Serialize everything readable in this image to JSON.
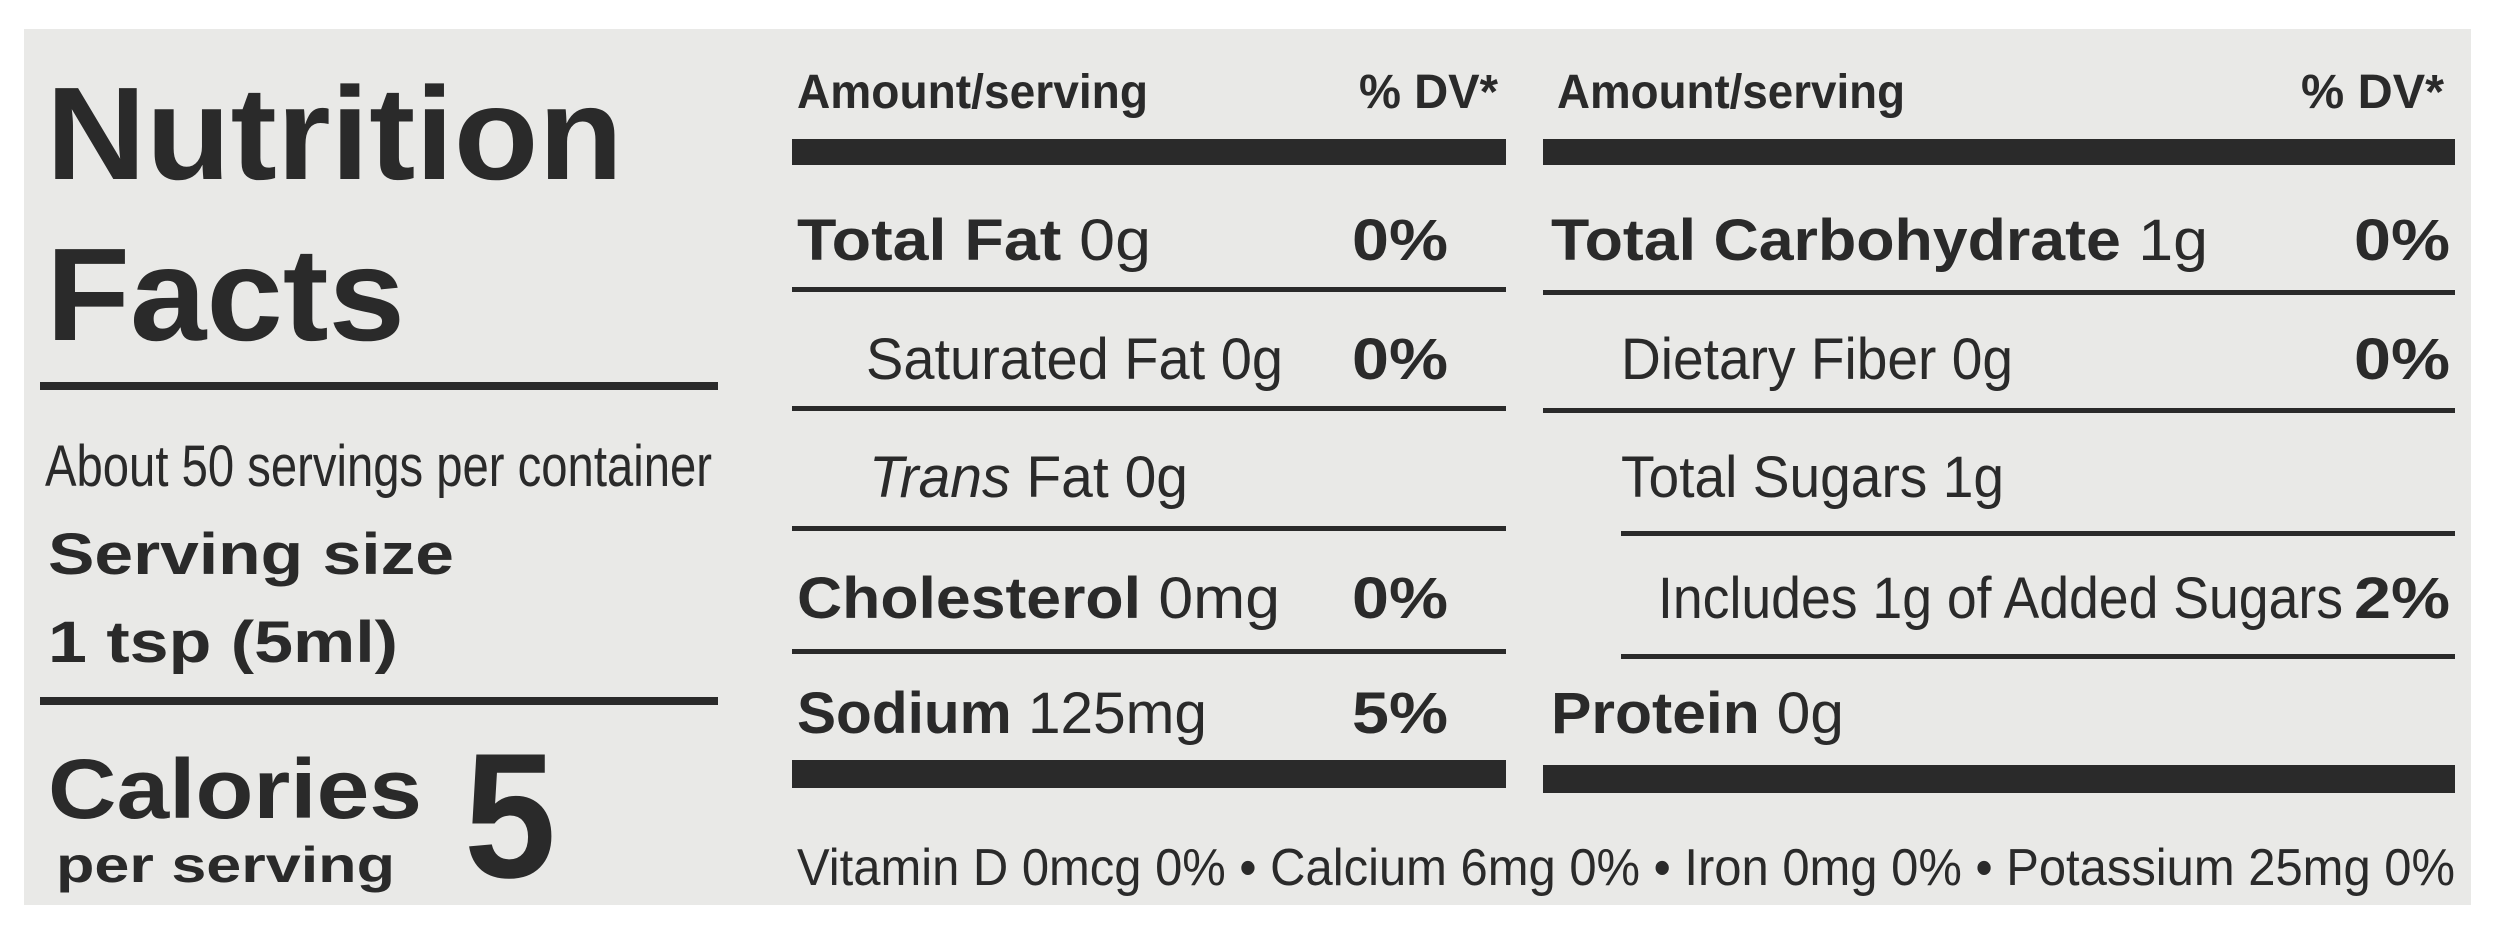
{
  "title": {
    "line1": "Nutrition",
    "line2": "Facts"
  },
  "servings_per_container": "About 50 servings per container",
  "serving_size": {
    "label": "Serving size",
    "value": "1 tsp (5ml)"
  },
  "calories": {
    "label": "Calories",
    "sublabel": "per serving",
    "value": 5
  },
  "columns": [
    {
      "header": {
        "amount": "Amount/serving",
        "dv": "% DV*"
      },
      "rows": [
        {
          "name": "Total Fat",
          "amount": "0g",
          "dv": "0%"
        },
        {
          "name": "Saturated Fat",
          "amount": "0g",
          "dv": "0%"
        },
        {
          "name_italic": "Trans",
          "name": "Fat",
          "amount": "0g"
        },
        {
          "name": "Cholesterol",
          "amount": "0mg",
          "dv": "0%"
        },
        {
          "name": "Sodium",
          "amount": "125mg",
          "dv": "5%"
        }
      ]
    },
    {
      "header": {
        "amount": "Amount/serving",
        "dv": "% DV*"
      },
      "rows": [
        {
          "name": "Total Carbohydrate",
          "amount": "1g",
          "dv": "0%"
        },
        {
          "name": "Dietary Fiber",
          "amount": "0g",
          "dv": "0%"
        },
        {
          "name": "Total Sugars",
          "amount": "1g"
        },
        {
          "name": "Includes 1g of Added Sugars",
          "dv": "2%"
        },
        {
          "name": "Protein",
          "amount": "0g"
        }
      ]
    }
  ],
  "footer": {
    "items": [
      "Vitamin D 0mcg 0%",
      "Calcium 6mg 0%",
      "Iron 0mg 0%",
      "Potassium 25mg 0%"
    ],
    "separator": "•"
  }
}
